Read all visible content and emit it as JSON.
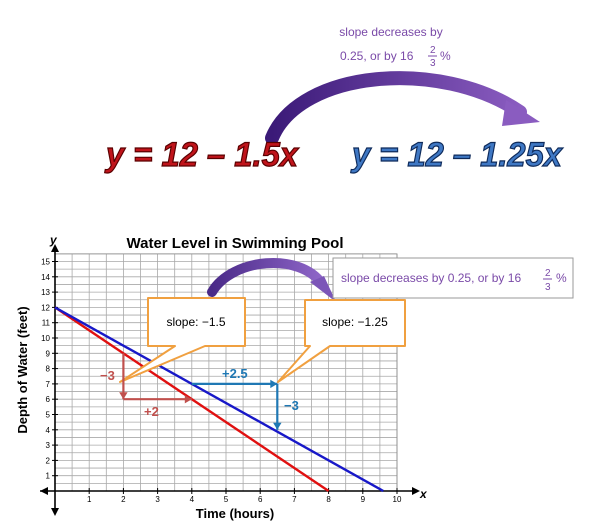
{
  "top_note": {
    "line1": "slope decreases by",
    "line2_prefix": "0.25, or by 16",
    "frac_num": "2",
    "frac_den": "3",
    "line2_suffix": "%",
    "color": "#7a4aa8"
  },
  "equations": {
    "left": "y = 12 – 1.5x",
    "right": "y = 12 – 1.25x",
    "left_color": "#c0141b",
    "right_color": "#3f78c4"
  },
  "chart_data": {
    "type": "line",
    "title": "Water Level in Swimming Pool",
    "xlabel": "Time (hours)",
    "ylabel": "Depth of Water (feet)",
    "x_axis_letter": "x",
    "y_axis_letter": "y",
    "xlim": [
      -0.2,
      10
    ],
    "ylim": [
      -0.2,
      15.5
    ],
    "x_ticks": [
      1,
      2,
      3,
      4,
      5,
      6,
      7,
      8,
      9,
      10
    ],
    "y_ticks": [
      1,
      2,
      3,
      4,
      5,
      6,
      7,
      8,
      9,
      10,
      11,
      12,
      13,
      14,
      15
    ],
    "grid": true,
    "series": [
      {
        "color": "#e01010",
        "points": [
          [
            0,
            12
          ],
          [
            8,
            0
          ]
        ]
      },
      {
        "color": "#1818c8",
        "points": [
          [
            0,
            12
          ],
          [
            9.6,
            0
          ]
        ]
      }
    ],
    "annotations": {
      "red_rise": "−3",
      "red_run": "+2",
      "blue_run": "+2.5",
      "blue_rise": "−3",
      "red_color": "#c0504d",
      "blue_color": "#1f78b4"
    },
    "callouts": {
      "left": "slope: −1.5",
      "right": "slope: −1.25",
      "border_color": "#f0a040"
    },
    "note_box": {
      "prefix": "slope decreases by 0.25, or by 16",
      "frac_num": "2",
      "frac_den": "3",
      "suffix": "%"
    }
  }
}
